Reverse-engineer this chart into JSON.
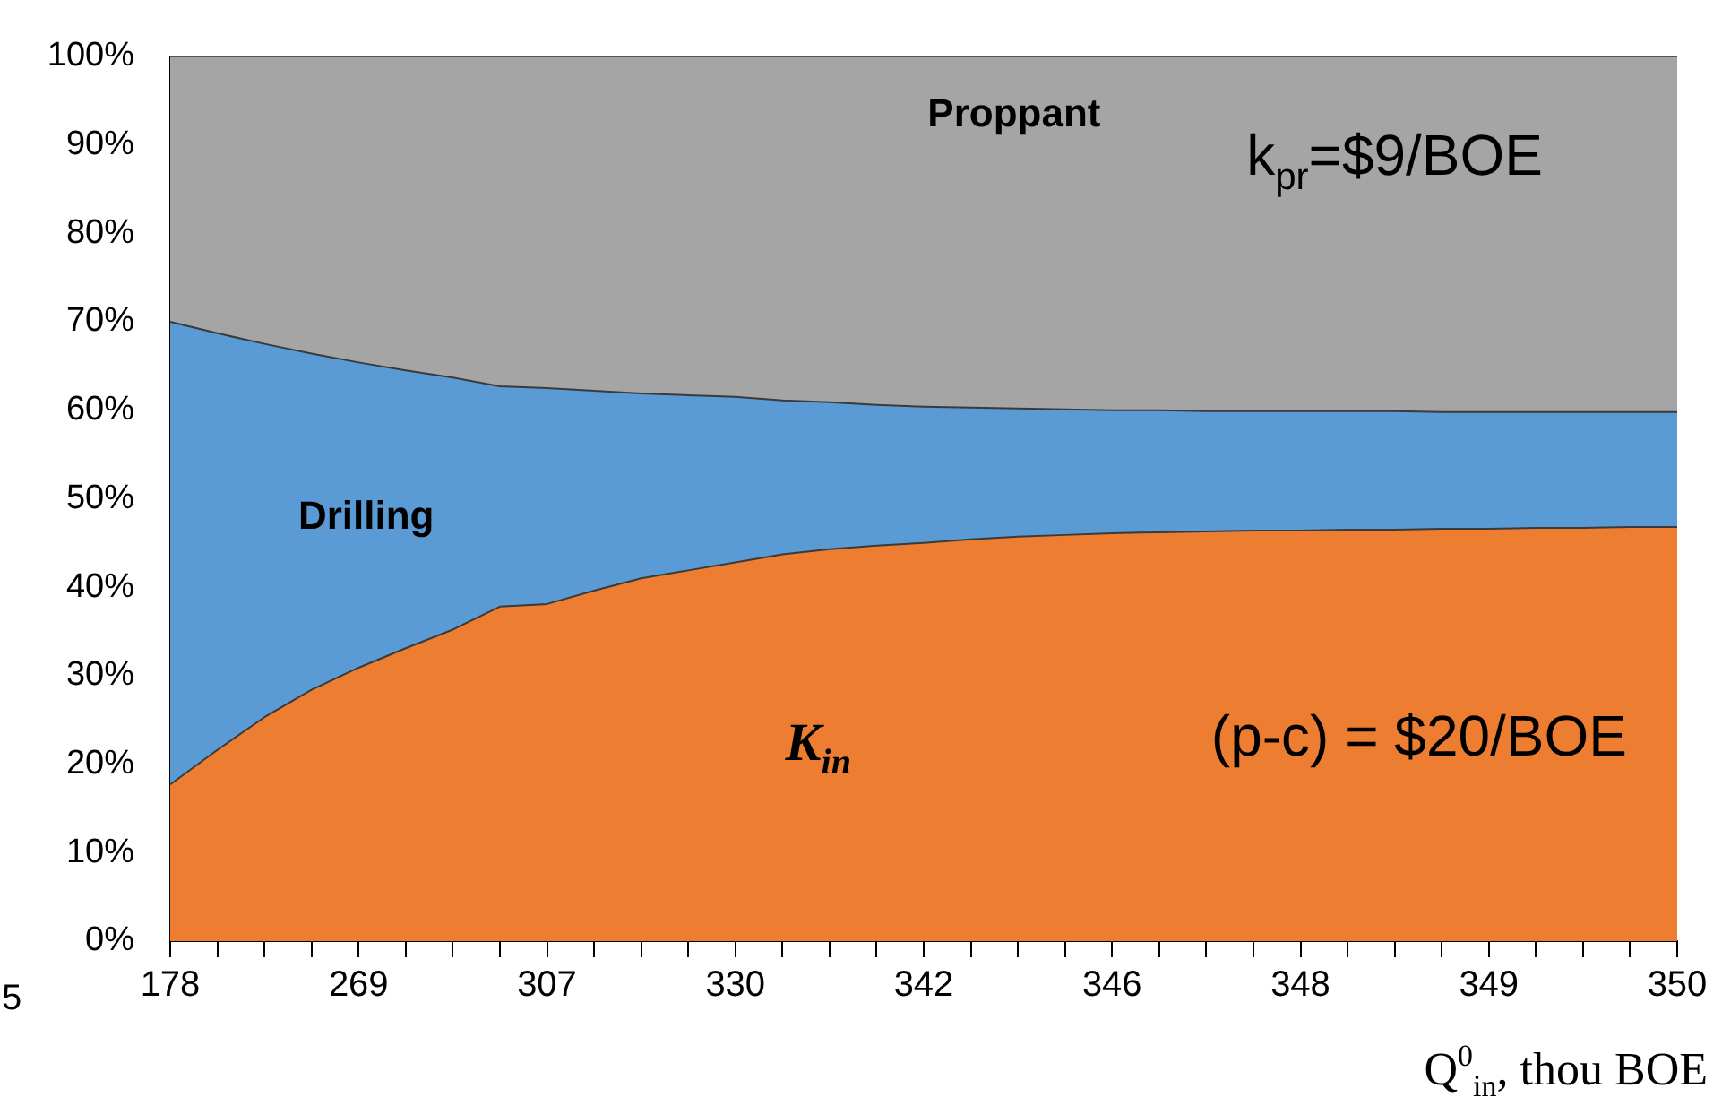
{
  "chart_data": {
    "type": "area",
    "stacked": true,
    "xlabel": "Q$^{0}$$_{in}$, thou BOE",
    "categories": [
      "178",
      null,
      null,
      null,
      "269",
      null,
      null,
      null,
      "307",
      null,
      null,
      null,
      "330",
      null,
      null,
      null,
      "342",
      null,
      null,
      null,
      "346",
      null,
      null,
      null,
      "348",
      null,
      null,
      null,
      "349",
      null,
      null,
      null,
      "350"
    ],
    "series": [
      {
        "name": "K$_{in}$",
        "color": "#ed7d31",
        "values": [
          17.7,
          21.6,
          25.3,
          28.4,
          30.9,
          33.1,
          35.2,
          37.8,
          38.1,
          39.6,
          41.0,
          41.9,
          42.8,
          43.7,
          44.3,
          44.7,
          45.0,
          45.4,
          45.7,
          45.9,
          46.1,
          46.2,
          46.3,
          46.4,
          46.4,
          46.5,
          46.5,
          46.6,
          46.6,
          46.7,
          46.7,
          46.8,
          46.8
        ]
      },
      {
        "name": "Drilling",
        "color": "#5b9bd5",
        "values": [
          52.3,
          47.1,
          42.2,
          38.0,
          34.5,
          31.4,
          28.5,
          24.9,
          24.4,
          22.6,
          20.9,
          19.8,
          18.7,
          17.4,
          16.6,
          15.9,
          15.4,
          14.9,
          14.5,
          14.2,
          13.9,
          13.8,
          13.6,
          13.5,
          13.5,
          13.4,
          13.4,
          13.2,
          13.2,
          13.1,
          13.1,
          13.0,
          13.0
        ]
      },
      {
        "name": "Proppant",
        "color": "#a5a5a5",
        "values": [
          30,
          31.3,
          32.5,
          33.6,
          34.6,
          35.5,
          36.3,
          37.3,
          37.5,
          37.8,
          38.1,
          38.3,
          38.5,
          38.9,
          39.1,
          39.4,
          39.6,
          39.7,
          39.8,
          39.9,
          40,
          40,
          40.1,
          40.1,
          40.1,
          40.1,
          40.1,
          40.2,
          40.2,
          40.2,
          40.2,
          40.2,
          40.2
        ]
      }
    ],
    "ylim": [
      0,
      100
    ],
    "yticks": [
      {
        "value": 0,
        "label": "0%"
      },
      {
        "value": 10,
        "label": "10%"
      },
      {
        "value": 20,
        "label": "20%"
      },
      {
        "value": 30,
        "label": "30%"
      },
      {
        "value": 40,
        "label": "40%"
      },
      {
        "value": 50,
        "label": "50%"
      },
      {
        "value": 60,
        "label": "60%"
      },
      {
        "value": 70,
        "label": "70%"
      },
      {
        "value": 80,
        "label": "80%"
      },
      {
        "value": 90,
        "label": "90%"
      },
      {
        "value": 100,
        "label": "100%"
      }
    ],
    "annotations": [
      "k$_{pr}$=$9/BOE",
      "(p-c) = $20/BOE",
      "5"
    ]
  }
}
